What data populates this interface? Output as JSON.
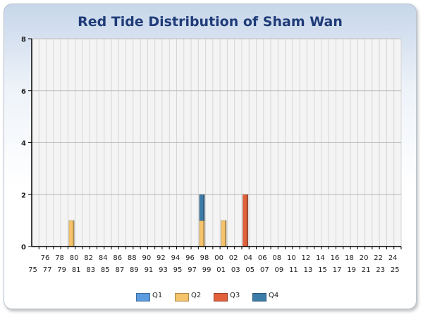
{
  "chart_data": {
    "type": "bar",
    "stacked": true,
    "title": "Red Tide Distribution of Sham Wan",
    "xlabel": "",
    "ylabel": "",
    "ylim": [
      0,
      8
    ],
    "yticks": [
      "0",
      "2",
      "4",
      "6",
      "8"
    ],
    "grid": true,
    "legend_position": "bottom",
    "categories": [
      "75",
      "76",
      "77",
      "78",
      "79",
      "80",
      "81",
      "82",
      "83",
      "84",
      "85",
      "86",
      "87",
      "88",
      "89",
      "90",
      "91",
      "92",
      "93",
      "94",
      "95",
      "96",
      "97",
      "98",
      "99",
      "00",
      "01",
      "02",
      "03",
      "04",
      "05",
      "06",
      "07",
      "08",
      "09",
      "10",
      "11",
      "12",
      "13",
      "14",
      "15",
      "16",
      "17",
      "18",
      "19",
      "20",
      "21",
      "22",
      "23",
      "24",
      "25"
    ],
    "series": [
      {
        "name": "Q1",
        "color": "#5b9be0",
        "values": [
          0,
          0,
          0,
          0,
          0,
          0,
          0,
          0,
          0,
          0,
          0,
          0,
          0,
          0,
          0,
          0,
          0,
          0,
          0,
          0,
          0,
          0,
          0,
          0,
          0,
          0,
          0,
          0,
          0,
          0,
          0,
          0,
          0,
          0,
          0,
          0,
          0,
          0,
          0,
          0,
          0,
          0,
          0,
          0,
          0,
          0,
          0,
          0,
          0,
          0,
          0
        ]
      },
      {
        "name": "Q2",
        "color": "#f5c36b",
        "values": [
          0,
          0,
          0,
          0,
          0,
          1,
          0,
          0,
          0,
          0,
          0,
          0,
          0,
          0,
          0,
          0,
          0,
          0,
          0,
          0,
          0,
          0,
          0,
          1,
          0,
          0,
          1,
          0,
          0,
          0,
          0,
          0,
          0,
          0,
          0,
          0,
          0,
          0,
          0,
          0,
          0,
          0,
          0,
          0,
          0,
          0,
          0,
          0,
          0,
          0,
          0
        ]
      },
      {
        "name": "Q3",
        "color": "#e0613a",
        "values": [
          0,
          0,
          0,
          0,
          0,
          0,
          0,
          0,
          0,
          0,
          0,
          0,
          0,
          0,
          0,
          0,
          0,
          0,
          0,
          0,
          0,
          0,
          0,
          0,
          0,
          0,
          0,
          0,
          0,
          2,
          0,
          0,
          0,
          0,
          0,
          0,
          0,
          0,
          0,
          0,
          0,
          0,
          0,
          0,
          0,
          0,
          0,
          0,
          0,
          0,
          0
        ]
      },
      {
        "name": "Q4",
        "color": "#3d7ba8",
        "values": [
          0,
          0,
          0,
          0,
          0,
          0,
          0,
          0,
          0,
          0,
          0,
          0,
          0,
          0,
          0,
          0,
          0,
          0,
          0,
          0,
          0,
          0,
          0,
          1,
          0,
          0,
          0,
          0,
          0,
          0,
          0,
          0,
          0,
          0,
          0,
          0,
          0,
          0,
          0,
          0,
          0,
          0,
          0,
          0,
          0,
          0,
          0,
          0,
          0,
          0,
          0
        ]
      }
    ]
  }
}
